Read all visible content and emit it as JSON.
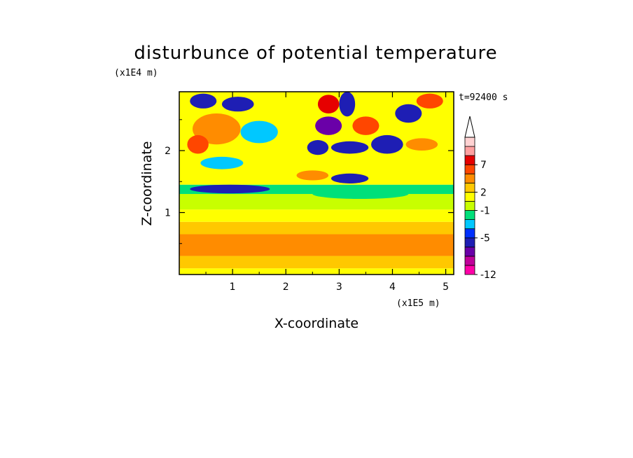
{
  "chart_data": {
    "type": "heatmap",
    "title": "disturbunce of potential temperature",
    "xlabel": "X-coordinate",
    "ylabel": "Z-coordinate",
    "x_unit": "(x1E5 m)",
    "y_unit": "(x1E4 m)",
    "time_label": "t=92400 s",
    "xlim": [
      0,
      5.15
    ],
    "ylim": [
      0,
      2.95
    ],
    "x_ticks": [
      1,
      2,
      3,
      4,
      5
    ],
    "y_ticks": [
      1,
      2
    ],
    "colorbar": {
      "labels": [
        "7",
        "2",
        "-1",
        "-5",
        "-12"
      ],
      "level_colors": [
        "#ff00a8",
        "#c0009a",
        "#6a00a8",
        "#1e1eb4",
        "#0030ff",
        "#00c8ff",
        "#00e07a",
        "#c8ff00",
        "#ffff00",
        "#ffc800",
        "#ff8c00",
        "#ff4600",
        "#e60000",
        "#ffa0a0",
        "#ffd2d2"
      ],
      "extend_top": true
    },
    "bands": [
      {
        "z_min": 0.0,
        "z_max": 0.1,
        "value": 1.5
      },
      {
        "z_min": 0.1,
        "z_max": 0.3,
        "value": 3.0
      },
      {
        "z_min": 0.3,
        "z_max": 0.65,
        "value": 4.0
      },
      {
        "z_min": 0.65,
        "z_max": 0.85,
        "value": 2.5
      },
      {
        "z_min": 0.85,
        "z_max": 1.05,
        "value": 1.0
      },
      {
        "z_min": 1.05,
        "z_max": 1.3,
        "value": 0.0
      },
      {
        "z_min": 1.3,
        "z_max": 1.45,
        "value": -1.0
      },
      {
        "z_min": 1.45,
        "z_max": 2.95,
        "value": 1.0
      }
    ],
    "blobs": [
      {
        "x": 0.95,
        "z": 1.38,
        "rx": 0.75,
        "rz": 0.07,
        "value": -6
      },
      {
        "x": 0.7,
        "z": 2.35,
        "rx": 0.45,
        "rz": 0.25,
        "value": 4
      },
      {
        "x": 0.35,
        "z": 2.1,
        "rx": 0.2,
        "rz": 0.15,
        "value": 6
      },
      {
        "x": 0.45,
        "z": 2.8,
        "rx": 0.25,
        "rz": 0.12,
        "value": -7
      },
      {
        "x": 1.1,
        "z": 2.75,
        "rx": 0.3,
        "rz": 0.12,
        "value": -6
      },
      {
        "x": 1.5,
        "z": 2.3,
        "rx": 0.35,
        "rz": 0.18,
        "value": -4
      },
      {
        "x": 0.8,
        "z": 1.8,
        "rx": 0.4,
        "rz": 0.1,
        "value": -3
      },
      {
        "x": 2.5,
        "z": 1.6,
        "rx": 0.3,
        "rz": 0.08,
        "value": 5
      },
      {
        "x": 3.2,
        "z": 1.55,
        "rx": 0.35,
        "rz": 0.08,
        "value": -7
      },
      {
        "x": 3.2,
        "z": 2.05,
        "rx": 0.35,
        "rz": 0.1,
        "value": -7
      },
      {
        "x": 2.6,
        "z": 2.05,
        "rx": 0.2,
        "rz": 0.12,
        "value": -6
      },
      {
        "x": 2.8,
        "z": 2.4,
        "rx": 0.25,
        "rz": 0.15,
        "value": -8
      },
      {
        "x": 2.8,
        "z": 2.75,
        "rx": 0.2,
        "rz": 0.15,
        "value": 8
      },
      {
        "x": 3.15,
        "z": 2.75,
        "rx": 0.15,
        "rz": 0.2,
        "value": -7
      },
      {
        "x": 3.5,
        "z": 2.4,
        "rx": 0.25,
        "rz": 0.15,
        "value": 6
      },
      {
        "x": 3.9,
        "z": 2.1,
        "rx": 0.3,
        "rz": 0.15,
        "value": -6
      },
      {
        "x": 4.3,
        "z": 2.6,
        "rx": 0.25,
        "rz": 0.15,
        "value": -7
      },
      {
        "x": 4.7,
        "z": 2.8,
        "rx": 0.25,
        "rz": 0.12,
        "value": 6
      },
      {
        "x": 4.55,
        "z": 2.1,
        "rx": 0.3,
        "rz": 0.1,
        "value": 4
      },
      {
        "x": 3.4,
        "z": 1.3,
        "rx": 0.9,
        "rz": 0.08,
        "value": -1
      },
      {
        "x": 0.35,
        "z": 0.45,
        "rx": 0.2,
        "rz": 0.1,
        "value": 5
      },
      {
        "x": 3.3,
        "z": 0.45,
        "rx": 0.8,
        "rz": 0.1,
        "value": 4.5
      }
    ]
  }
}
